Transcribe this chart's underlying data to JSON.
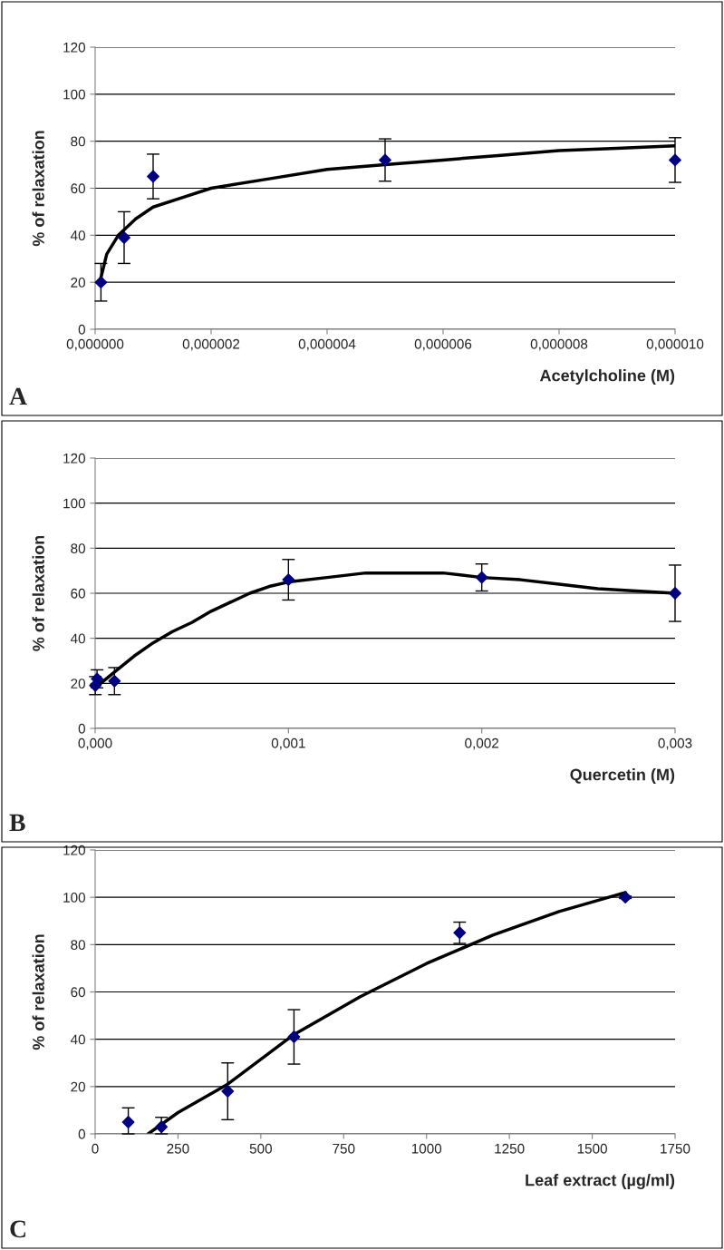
{
  "chart_data": [
    {
      "type": "scatter",
      "xlabel": "Acetylcholine (M)",
      "ylabel": "% of relaxation",
      "annotations": [
        "A"
      ],
      "xlim": [
        0,
        1e-05
      ],
      "ylim": [
        0,
        120
      ],
      "xticks": [
        {
          "value": 0,
          "label": "0,000000"
        },
        {
          "value": 2e-06,
          "label": "0,000002"
        },
        {
          "value": 4e-06,
          "label": "0,000004"
        },
        {
          "value": 6e-06,
          "label": "0,000006"
        },
        {
          "value": 8e-06,
          "label": "0,000008"
        },
        {
          "value": 1e-05,
          "label": "0,000010"
        }
      ],
      "yticks": [
        0,
        20,
        40,
        60,
        80,
        100,
        120
      ],
      "grid": "y",
      "legend": false,
      "series": [
        {
          "color": "#000080",
          "marker": "diamond",
          "x": [
            1e-07,
            5e-07,
            1e-06,
            5e-06,
            1e-05
          ],
          "values": [
            20,
            39,
            65,
            72,
            72
          ],
          "errors": [
            8,
            11,
            9.5,
            9,
            9.5
          ]
        },
        {
          "type": "line",
          "color": "#000000",
          "marker": "none",
          "line_style": "solid",
          "x": [
            1e-07,
            2e-07,
            4e-07,
            7e-07,
            1e-06,
            1.5e-06,
            2e-06,
            3e-06,
            4e-06,
            5e-06,
            6e-06,
            7e-06,
            8e-06,
            9e-06,
            1e-05
          ],
          "values": [
            22,
            32,
            40,
            47,
            52,
            56,
            60,
            64,
            68,
            70,
            72,
            74,
            76,
            77,
            78
          ]
        }
      ]
    },
    {
      "type": "scatter",
      "xlabel": "Quercetin (M)",
      "ylabel": "% of relaxation",
      "annotations": [
        "B"
      ],
      "xlim": [
        0,
        0.003
      ],
      "ylim": [
        0,
        120
      ],
      "xticks": [
        {
          "value": 0,
          "label": "0,000"
        },
        {
          "value": 0.001,
          "label": "0,001"
        },
        {
          "value": 0.002,
          "label": "0,002"
        },
        {
          "value": 0.003,
          "label": "0,003"
        }
      ],
      "yticks": [
        0,
        20,
        40,
        60,
        80,
        100,
        120
      ],
      "grid": "y",
      "legend": false,
      "series": [
        {
          "color": "#000080",
          "marker": "diamond",
          "x": [
            1e-06,
            1e-05,
            0.0001,
            0.001,
            0.002,
            0.003
          ],
          "values": [
            19,
            22,
            21,
            66,
            67,
            60
          ],
          "errors": [
            4,
            4,
            6,
            9,
            6,
            12.5
          ]
        },
        {
          "type": "line",
          "color": "#000000",
          "marker": "none",
          "line_style": "solid",
          "x": [
            0,
            0.0001,
            0.0002,
            0.0003,
            0.0004,
            0.0005,
            0.0006,
            0.0007,
            0.0008,
            0.0009,
            0.001,
            0.0012,
            0.0014,
            0.0016,
            0.0018,
            0.002,
            0.0022,
            0.0024,
            0.0026,
            0.0028,
            0.003
          ],
          "values": [
            18,
            25,
            32,
            38,
            43,
            47,
            52,
            56,
            60,
            63,
            65,
            67,
            69,
            69,
            69,
            67,
            66,
            64,
            62,
            61,
            60
          ]
        }
      ]
    },
    {
      "type": "scatter",
      "xlabel": "Leaf extract (µg/ml)",
      "ylabel": "% of relaxation",
      "annotations": [
        "C"
      ],
      "xlim": [
        0,
        1750
      ],
      "ylim": [
        0,
        120
      ],
      "xticks": [
        0,
        250,
        500,
        750,
        1000,
        1250,
        1500,
        1750
      ],
      "yticks": [
        0,
        20,
        40,
        60,
        80,
        100,
        120
      ],
      "grid": "y",
      "legend": false,
      "series": [
        {
          "color": "#000080",
          "marker": "diamond",
          "x": [
            100,
            200,
            400,
            600,
            1100,
            1600
          ],
          "values": [
            5,
            3,
            18,
            41,
            85,
            100
          ],
          "errors": [
            [
              0,
              11
            ],
            [
              0,
              7
            ],
            12,
            11.5,
            4.5,
            0.5
          ]
        },
        {
          "type": "line",
          "color": "#000000",
          "marker": "none",
          "line_style": "solid",
          "x": [
            160,
            250,
            400,
            600,
            800,
            1000,
            1200,
            1400,
            1600
          ],
          "values": [
            0,
            9,
            21,
            42,
            58,
            72,
            84,
            94,
            102
          ]
        }
      ]
    }
  ]
}
